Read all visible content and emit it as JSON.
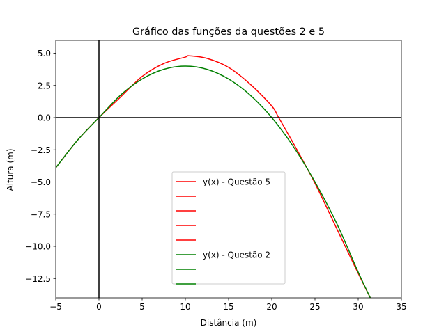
{
  "chart_data": {
    "type": "line",
    "title": "Gráfico das funções da questões 2 e 5",
    "xlabel": "Distância (m)",
    "ylabel": "Altura (m)",
    "xlim": [
      -5,
      35
    ],
    "ylim": [
      -14,
      6
    ],
    "xticks": [
      -5,
      0,
      5,
      10,
      15,
      20,
      25,
      30,
      35
    ],
    "xtick_labels": [
      "−5",
      "0",
      "5",
      "10",
      "15",
      "20",
      "25",
      "30",
      "35"
    ],
    "yticks": [
      5.0,
      2.5,
      0.0,
      -2.5,
      -5.0,
      -7.5,
      -10.0,
      -12.5
    ],
    "ytick_labels": [
      "5.0",
      "2.5",
      "0.0",
      "−2.5",
      "−5.0",
      "−7.5",
      "−10.0",
      "−12.5"
    ],
    "grid": false,
    "reference_lines": {
      "x": 0,
      "y": 0,
      "color": "#000000"
    },
    "series": [
      {
        "name": "y(x) - Questão 5",
        "color": "#ff0000",
        "x_start": -5,
        "x_end": 31.4,
        "x": [
          -5,
          -2.5,
          0,
          2.5,
          5,
          7.5,
          10,
          10.4,
          12.5,
          15,
          17.5,
          20,
          20.8,
          22.5,
          25,
          27.5,
          30,
          31.4
        ],
        "y": [
          -3.9,
          -1.77,
          0.0,
          1.6,
          3.2,
          4.2,
          4.7,
          4.8,
          4.6,
          3.9,
          2.6,
          0.9,
          0.0,
          -2.0,
          -5.1,
          -8.6,
          -12.1,
          -14.0
        ]
      },
      {
        "name": "",
        "color": "#ff0000",
        "hidden": true
      },
      {
        "name": "",
        "color": "#ff0000",
        "hidden": true
      },
      {
        "name": "",
        "color": "#ff0000",
        "hidden": true
      },
      {
        "name": "",
        "color": "#ff0000",
        "hidden": true
      },
      {
        "name": "y(x) - Questão 2",
        "color": "#008000",
        "x_start": -5,
        "x_end": 31.4,
        "x": [
          -5,
          -2.5,
          0,
          2.5,
          5,
          7.5,
          10,
          12.5,
          15,
          17.5,
          20,
          22.5,
          25,
          27.5,
          30,
          31.4
        ],
        "y": [
          -3.9,
          -1.77,
          0.0,
          1.75,
          3.0,
          3.75,
          4.0,
          3.75,
          3.0,
          1.75,
          0.0,
          -2.25,
          -5.0,
          -8.2,
          -12.0,
          -14.0
        ]
      },
      {
        "name": "",
        "color": "#008000",
        "hidden": true
      },
      {
        "name": "",
        "color": "#008000",
        "hidden": true
      }
    ],
    "legend_position": "lower-center"
  }
}
